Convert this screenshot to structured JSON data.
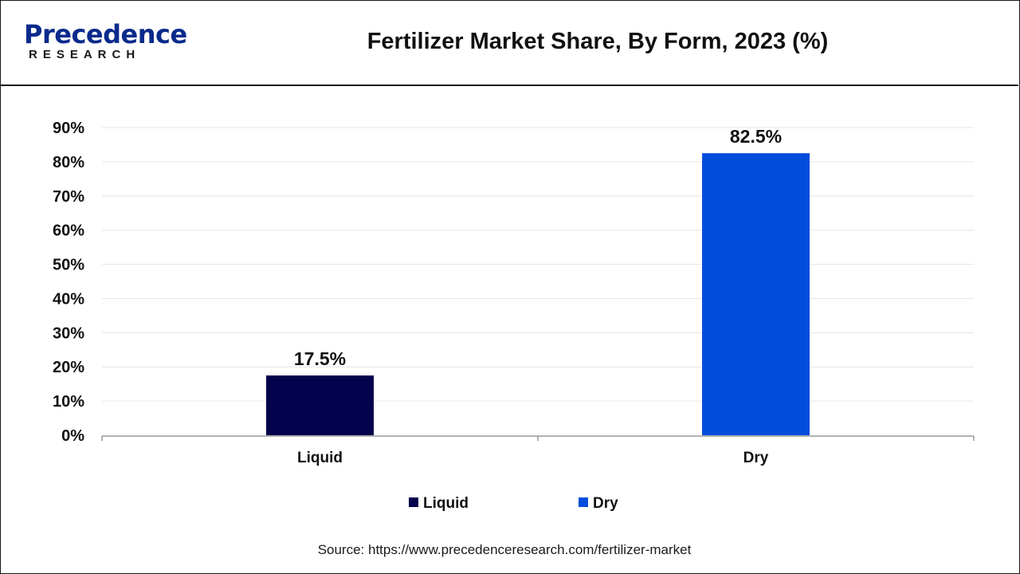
{
  "brand": {
    "name": "Precedence",
    "subline": "RESEARCH"
  },
  "header": {
    "title": "Fertilizer Market Share, By Form, 2023 (%)"
  },
  "source": "Source: https://www.precedenceresearch.com/fertilizer-market",
  "chart_data": {
    "type": "bar",
    "title": "Fertilizer Market Share, By Form, 2023 (%)",
    "categories": [
      "Liquid",
      "Dry"
    ],
    "values": [
      17.5,
      82.5
    ],
    "data_labels": [
      "17.5%",
      "82.5%"
    ],
    "colors": [
      "#02024d",
      "#044ddc"
    ],
    "ylim": [
      0,
      90
    ],
    "y_ticks": [
      {
        "value": 0,
        "label": "0%"
      },
      {
        "value": 10,
        "label": "10%"
      },
      {
        "value": 20,
        "label": "20%"
      },
      {
        "value": 30,
        "label": "30%"
      },
      {
        "value": 40,
        "label": "40%"
      },
      {
        "value": 50,
        "label": "50%"
      },
      {
        "value": 60,
        "label": "60%"
      },
      {
        "value": 70,
        "label": "70%"
      },
      {
        "value": 80,
        "label": "80%"
      },
      {
        "value": 90,
        "label": "90%"
      }
    ],
    "xlabel": "",
    "ylabel": "",
    "grid": true,
    "legend": {
      "position": "bottom",
      "entries": [
        {
          "label": "Liquid",
          "color": "#02024d"
        },
        {
          "label": "Dry",
          "color": "#044ddc"
        }
      ]
    }
  }
}
